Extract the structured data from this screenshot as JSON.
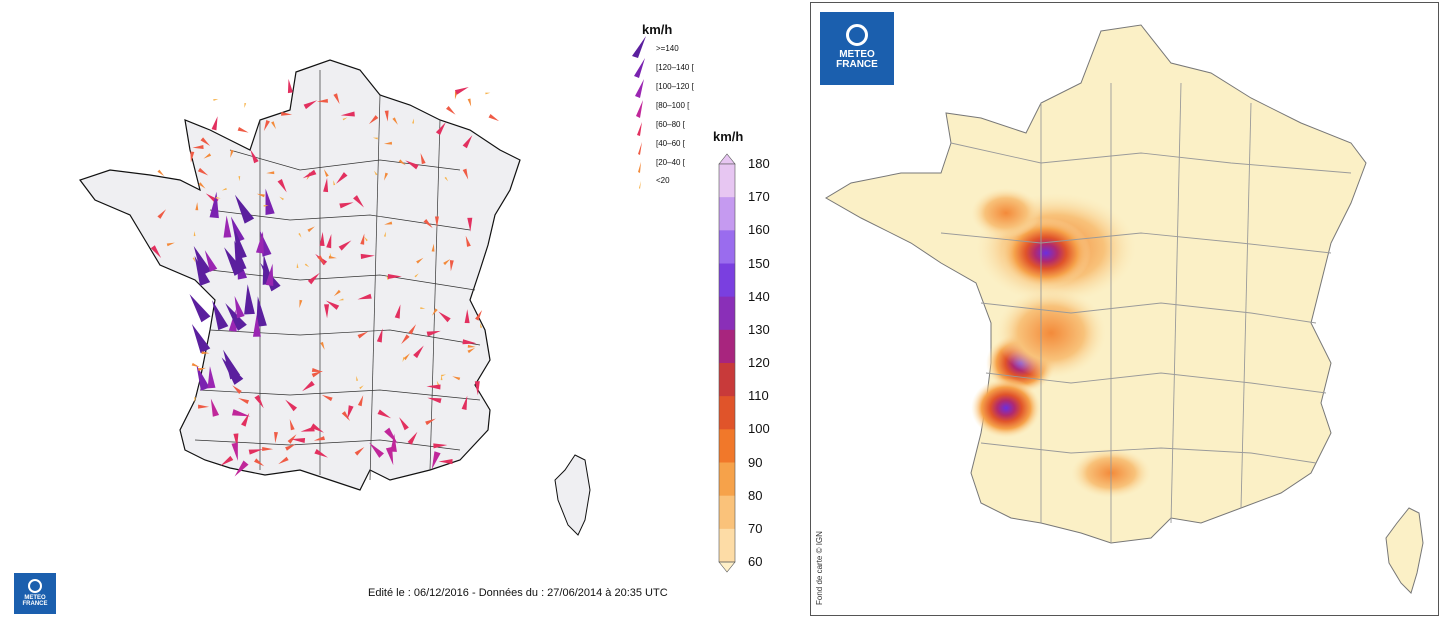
{
  "left_panel": {
    "legend": {
      "unit": "km/h",
      "classes": [
        {
          "label": ">=140",
          "color": "#5b1f9e"
        },
        {
          "label": "[120–140 [",
          "color": "#7a22b0"
        },
        {
          "label": "[100–120 [",
          "color": "#9a26b2"
        },
        {
          "label": "[80–100 [",
          "color": "#c0279a"
        },
        {
          "label": "[60–80 [",
          "color": "#e2305f"
        },
        {
          "label": "[40–60 [",
          "color": "#ef5b45"
        },
        {
          "label": "[20–40 [",
          "color": "#f38a3a"
        },
        {
          "label": "<20",
          "color": "#f7b24a"
        }
      ]
    },
    "scale": {
      "unit": "km/h",
      "ticks": [
        "180",
        "170",
        "160",
        "150",
        "140",
        "130",
        "120",
        "110",
        "100",
        "90",
        "80",
        "70",
        "60"
      ],
      "colors": [
        "#e7c6f2",
        "#c59af0",
        "#9a6cee",
        "#7a3fe0",
        "#8a2fb8",
        "#a8257e",
        "#c83a3a",
        "#e0542a",
        "#f1782a",
        "#f6a24a",
        "#fac27a",
        "#fddca6",
        "#fff0c8"
      ]
    },
    "footer": "Edité le : 06/12/2016 - Données du : 27/06/2014 à 20:35 UTC",
    "logo": {
      "line1": "METEO",
      "line2": "FRANCE"
    }
  },
  "right_panel": {
    "logo": {
      "line1": "METEO",
      "line2": "FRANCE"
    },
    "credit": "Fond de carte © IGN"
  }
}
